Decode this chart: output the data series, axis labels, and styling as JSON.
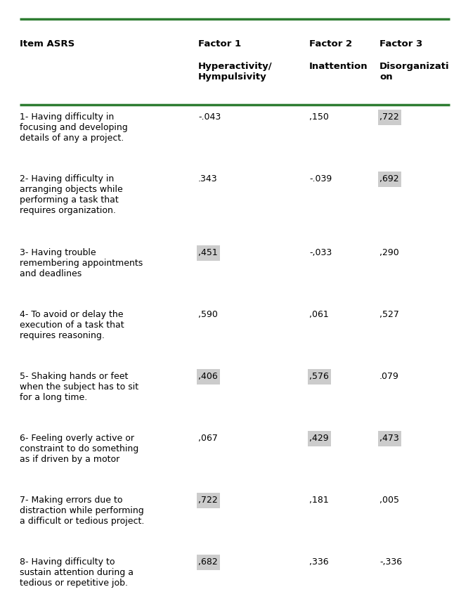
{
  "col_headers_line1": [
    "Item ASRS",
    "Factor 1",
    "Factor 2",
    "Factor 3"
  ],
  "col_headers_line2": [
    "",
    "Hyperactivity/\nHympulsivity",
    "Inattention",
    "Disorganizati\non"
  ],
  "rows": [
    {
      "item": "1- Having difficulty in\nfocusing and developing\ndetails of any a project.",
      "f1": "-.043",
      "f2": ",150",
      "f3": ",722",
      "highlight": [
        false,
        false,
        true
      ]
    },
    {
      "item": "2- Having difficulty in\narranging objects while\nperforming a task that\nrequires organization.",
      "f1": ".343",
      "f2": "-.039",
      "f3": ",692",
      "highlight": [
        false,
        false,
        true
      ]
    },
    {
      "item": "3- Having trouble\nremembering appointments\nand deadlines",
      "f1": ",451",
      "f2": "-,033",
      "f3": ",290",
      "highlight": [
        true,
        false,
        false
      ]
    },
    {
      "item": "4- To avoid or delay the\nexecution of a task that\nrequires reasoning.",
      "f1": ",590",
      "f2": ",061",
      "f3": ",527",
      "highlight": [
        false,
        false,
        false
      ]
    },
    {
      "item": "5- Shaking hands or feet\nwhen the subject has to sit\nfor a long time.",
      "f1": ",406",
      "f2": ",576",
      "f3": ".079",
      "highlight": [
        true,
        true,
        false
      ]
    },
    {
      "item": "6- Feeling overly active or\nconstraint to do something\nas if driven by a motor",
      "f1": ",067",
      "f2": ",429",
      "f3": ",473",
      "highlight": [
        false,
        true,
        true
      ]
    },
    {
      "item": "7- Making errors due to\ndistraction while performing\na difficult or tedious project.",
      "f1": ",722",
      "f2": ",181",
      "f3": ",005",
      "highlight": [
        true,
        false,
        false
      ]
    },
    {
      "item": "8- Having difficulty to\nsustain attention during a\ntedious or repetitive job.",
      "f1": ",682",
      "f2": ",336",
      "f3": "-,336",
      "highlight": [
        true,
        false,
        false
      ]
    }
  ],
  "highlight_color": "#cccccc",
  "green_color": "#2e7d32",
  "font_size": 9.0,
  "header_font_size": 9.5,
  "fig_width": 6.37,
  "fig_height": 8.23,
  "dpi": 100
}
